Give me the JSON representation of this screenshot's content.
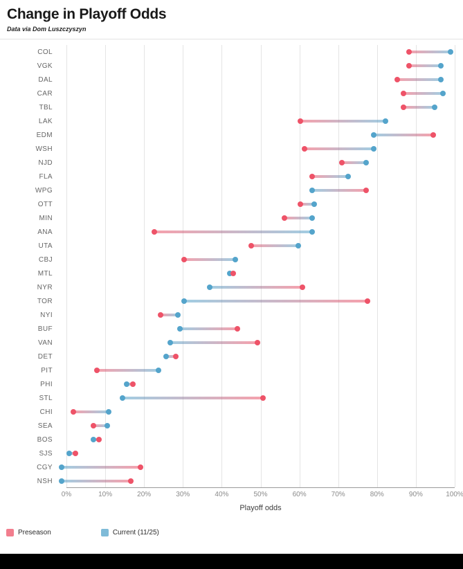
{
  "header": {
    "title": "Change in Playoff Odds",
    "subtitle": "Data via Dom Luszczyszyn"
  },
  "chart_data": {
    "type": "dumbbell",
    "title": "Change in Playoff Odds",
    "subtitle": "Data via Dom Luszczyszyn",
    "xlabel": "Playoff odds",
    "xlim": [
      0,
      100
    ],
    "x_ticks": [
      "0%",
      "10%",
      "20%",
      "30%",
      "40%",
      "50%",
      "60%",
      "70%",
      "80%",
      "90%",
      "100%"
    ],
    "grid": true,
    "legend_position": "bottom-left",
    "legend": [
      {
        "label": "Preseason",
        "color": "#ee5368"
      },
      {
        "label": "Current (11/25)",
        "color": "#54a4cb"
      }
    ],
    "series": [
      {
        "team": "COL",
        "preseason": 88.5,
        "current": 99
      },
      {
        "team": "VGK",
        "preseason": 88.5,
        "current": 96.5
      },
      {
        "team": "DAL",
        "preseason": 85.5,
        "current": 96.5
      },
      {
        "team": "CAR",
        "preseason": 87,
        "current": 97
      },
      {
        "team": "TBL",
        "preseason": 87,
        "current": 95
      },
      {
        "team": "LAK",
        "preseason": 61,
        "current": 82.5
      },
      {
        "team": "EDM",
        "preseason": 94.5,
        "current": 79.5
      },
      {
        "team": "WSH",
        "preseason": 62,
        "current": 79.5
      },
      {
        "team": "NJD",
        "preseason": 71.5,
        "current": 77.5
      },
      {
        "team": "FLA",
        "preseason": 64,
        "current": 73
      },
      {
        "team": "WPG",
        "preseason": 77.5,
        "current": 64
      },
      {
        "team": "OTT",
        "preseason": 61,
        "current": 64.5
      },
      {
        "team": "MIN",
        "preseason": 57,
        "current": 64
      },
      {
        "team": "ANA",
        "preseason": 24,
        "current": 64
      },
      {
        "team": "UTA",
        "preseason": 48.5,
        "current": 60.5
      },
      {
        "team": "CBJ",
        "preseason": 31.5,
        "current": 44.5
      },
      {
        "team": "MTL",
        "preseason": 44,
        "current": 43
      },
      {
        "team": "NYR",
        "preseason": 61.5,
        "current": 38
      },
      {
        "team": "TOR",
        "preseason": 78,
        "current": 31.5
      },
      {
        "team": "NYI",
        "preseason": 25.5,
        "current": 30
      },
      {
        "team": "BUF",
        "preseason": 45,
        "current": 30.5
      },
      {
        "team": "VAN",
        "preseason": 50,
        "current": 28
      },
      {
        "team": "DET",
        "preseason": 29.5,
        "current": 27
      },
      {
        "team": "PIT",
        "preseason": 9.5,
        "current": 25
      },
      {
        "team": "PHI",
        "preseason": 18.5,
        "current": 17
      },
      {
        "team": "STL",
        "preseason": 51.5,
        "current": 16
      },
      {
        "team": "CHI",
        "preseason": 3.5,
        "current": 12.5
      },
      {
        "team": "SEA",
        "preseason": 8.5,
        "current": 12
      },
      {
        "team": "BOS",
        "preseason": 10,
        "current": 8.5
      },
      {
        "team": "SJS",
        "preseason": 4,
        "current": 2.5
      },
      {
        "team": "CGY",
        "preseason": 20.5,
        "current": 0.5
      },
      {
        "team": "NSH",
        "preseason": 18,
        "current": 0.5
      }
    ]
  }
}
